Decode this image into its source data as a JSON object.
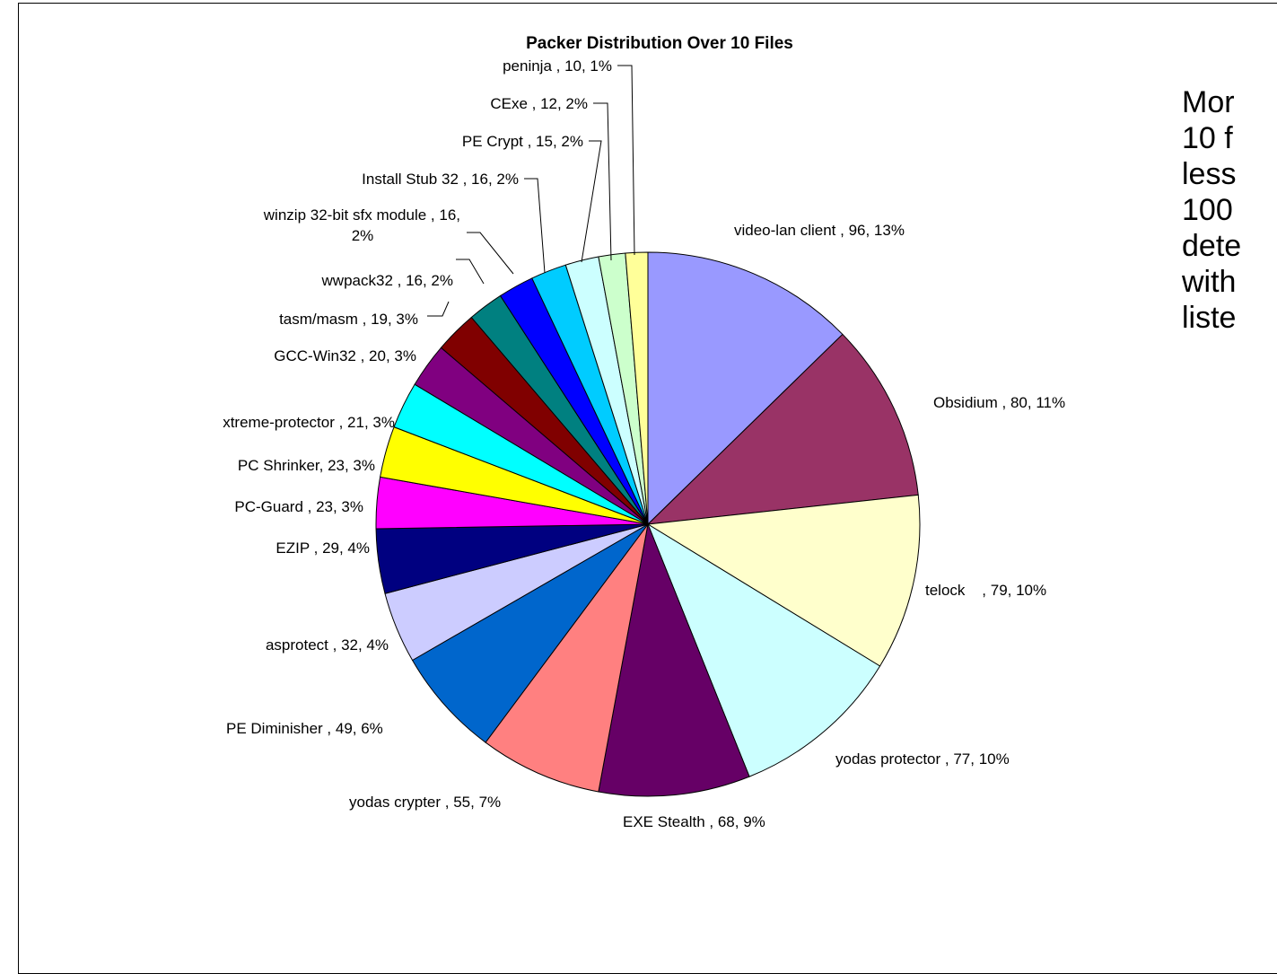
{
  "chart_data": {
    "type": "pie",
    "title": "Packer Distribution Over 10 Files",
    "slices": [
      {
        "label": "video-lan client",
        "value": 96,
        "percent": "13%",
        "color": "#9999FF",
        "text": "video-lan client , 96, 13%"
      },
      {
        "label": "Obsidium",
        "value": 80,
        "percent": "11%",
        "color": "#993366",
        "text": "Obsidium , 80, 11%"
      },
      {
        "label": "telock",
        "value": 79,
        "percent": "10%",
        "color": "#FFFFCC",
        "text": "telock    , 79, 10%"
      },
      {
        "label": "yodas protector",
        "value": 77,
        "percent": "10%",
        "color": "#CCFFFF",
        "text": "yodas protector , 77, 10%"
      },
      {
        "label": "EXE Stealth",
        "value": 68,
        "percent": "9%",
        "color": "#660066",
        "text": "EXE Stealth , 68, 9%"
      },
      {
        "label": "yodas crypter",
        "value": 55,
        "percent": "7%",
        "color": "#FF8080",
        "text": "yodas crypter , 55, 7%"
      },
      {
        "label": "PE Diminisher",
        "value": 49,
        "percent": "6%",
        "color": "#0066CC",
        "text": "PE Diminisher , 49, 6%"
      },
      {
        "label": "asprotect",
        "value": 32,
        "percent": "4%",
        "color": "#CCCCFF",
        "text": "asprotect , 32, 4%"
      },
      {
        "label": "EZIP",
        "value": 29,
        "percent": "4%",
        "color": "#000080",
        "text": "EZIP , 29, 4%"
      },
      {
        "label": "PC-Guard",
        "value": 23,
        "percent": "3%",
        "color": "#FF00FF",
        "text": "PC-Guard , 23, 3%"
      },
      {
        "label": "PC Shrinker",
        "value": 23,
        "percent": "3%",
        "color": "#FFFF00",
        "text": "PC Shrinker, 23, 3%"
      },
      {
        "label": "xtreme-protector",
        "value": 21,
        "percent": "3%",
        "color": "#00FFFF",
        "text": "xtreme-protector , 21, 3%"
      },
      {
        "label": "GCC-Win32",
        "value": 20,
        "percent": "3%",
        "color": "#800080",
        "text": "GCC-Win32 , 20, 3%"
      },
      {
        "label": "tasm/masm",
        "value": 19,
        "percent": "3%",
        "color": "#800000",
        "text": "tasm/masm , 19, 3%"
      },
      {
        "label": "wwpack32",
        "value": 16,
        "percent": "2%",
        "color": "#008080",
        "text": "wwpack32 , 16, 2%"
      },
      {
        "label": "winzip 32-bit sfx module",
        "value": 16,
        "percent": "2%",
        "color": "#0000FF",
        "text": "winzip 32-bit sfx module , 16,\n2%"
      },
      {
        "label": "Install Stub 32",
        "value": 16,
        "percent": "2%",
        "color": "#00CCFF",
        "text": "Install Stub 32 , 16, 2%"
      },
      {
        "label": "PE Crypt",
        "value": 15,
        "percent": "2%",
        "color": "#CCFFFF",
        "text": "PE Crypt , 15, 2%"
      },
      {
        "label": "CExe",
        "value": 12,
        "percent": "2%",
        "color": "#CCFFCC",
        "text": "CExe , 12, 2%"
      },
      {
        "label": "peninja",
        "value": 10,
        "percent": "1%",
        "color": "#FFFF99",
        "text": "peninja , 10, 1%"
      }
    ]
  },
  "side_note": {
    "lines": [
      "Mor",
      "10 f",
      "less",
      "100",
      "dete",
      "with",
      "liste"
    ]
  }
}
